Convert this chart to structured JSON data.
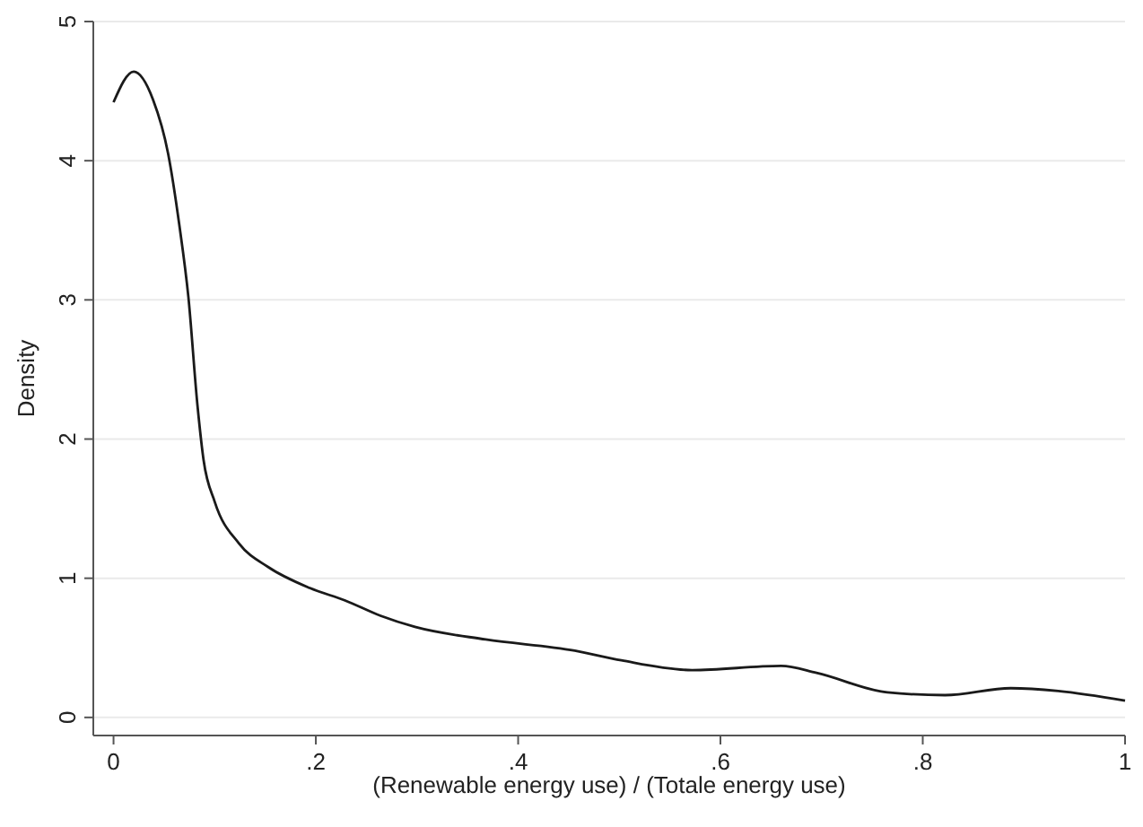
{
  "chart_data": {
    "type": "line",
    "xlabel": "(Renewable energy use) / (Totale energy use)",
    "ylabel": "Density",
    "x": [
      0,
      0.02,
      0.039,
      0.054,
      0.065,
      0.074,
      0.083,
      0.089,
      0.1,
      0.124,
      0.153,
      0.194,
      0.229,
      0.264,
      0.298,
      0.368,
      0.456,
      0.502,
      0.572,
      0.66,
      0.695,
      0.765,
      0.822,
      0.887,
      0.934,
      1
    ],
    "series": [
      {
        "color": "#1a1a1a",
        "values": [
          4.42,
          4.64,
          4.44,
          4.05,
          3.54,
          3.02,
          2.24,
          1.85,
          1.55,
          1.25,
          1.08,
          0.93,
          0.84,
          0.73,
          0.65,
          0.56,
          0.48,
          0.41,
          0.34,
          0.37,
          0.32,
          0.18,
          0.16,
          0.21,
          0.19,
          0.12
        ]
      }
    ],
    "xlim": [
      -0.02,
      1
    ],
    "ylim": [
      -0.13,
      5
    ],
    "xticks": [
      0,
      {
        "value": 0.2,
        "label": ".2"
      },
      {
        "value": 0.4,
        "label": ".4"
      },
      {
        "value": 0.6,
        "label": ".6"
      },
      {
        "value": 0.8,
        "label": ".8"
      },
      1
    ],
    "yticks": [
      0,
      1,
      2,
      3,
      4,
      5
    ],
    "grid": "y",
    "marker": "none",
    "line_style": "solid"
  }
}
